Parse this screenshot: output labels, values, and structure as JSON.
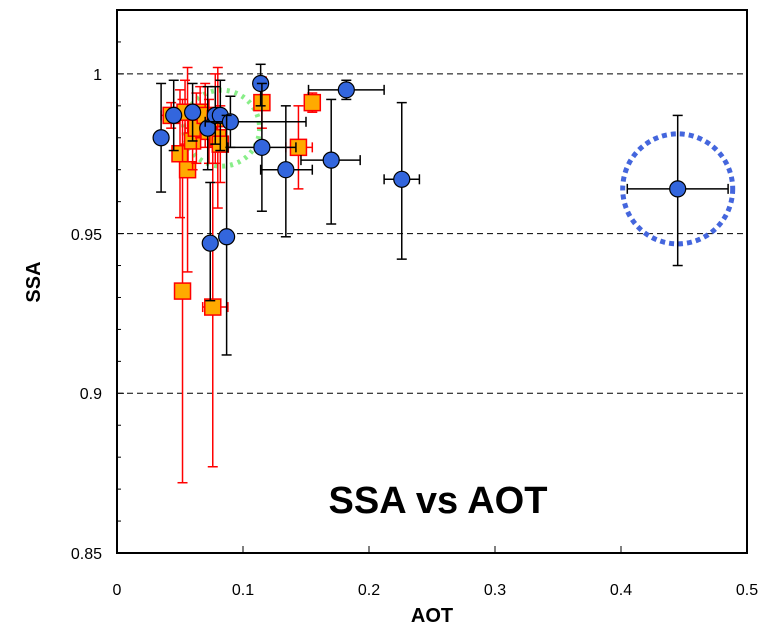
{
  "chart_data": {
    "type": "scatter",
    "title": "",
    "annotation": "SSA vs AOT",
    "xlabel": "AOT",
    "ylabel": "SSA",
    "xlim": [
      0,
      0.5
    ],
    "ylim": [
      0.85,
      1.02
    ],
    "xticks": [
      0,
      0.1,
      0.2,
      0.3,
      0.4,
      0.5
    ],
    "xtick_labels": [
      "0",
      "0.1",
      "0.2",
      "0.3",
      "0.4",
      "0.5"
    ],
    "yticks": [
      0.85,
      0.9,
      0.95,
      1
    ],
    "ytick_labels": [
      "0.85",
      "0.9",
      "0.95",
      "1"
    ],
    "dashed_gridlines_y": [
      0.9,
      0.95,
      1
    ],
    "legend": "none",
    "series": [
      {
        "marker": "circle",
        "color": "#3366dd",
        "error_color": "#000000",
        "points": [
          {
            "x": 0.035,
            "y": 0.98,
            "ylo": 0.963,
            "yhi": 0.997
          },
          {
            "x": 0.045,
            "y": 0.987,
            "ylo": 0.976,
            "yhi": 0.998
          },
          {
            "x": 0.06,
            "y": 0.988,
            "ylo": 0.979,
            "yhi": 0.997
          },
          {
            "x": 0.072,
            "y": 0.983,
            "ylo": 0.97,
            "yhi": 0.996
          },
          {
            "x": 0.078,
            "y": 0.987,
            "ylo": 0.978,
            "yhi": 0.996
          },
          {
            "x": 0.082,
            "y": 0.987,
            "ylo": 0.976,
            "yhi": 0.998
          },
          {
            "x": 0.09,
            "y": 0.985,
            "xlo": 0.07,
            "xhi": 0.15,
            "ylo": 0.977,
            "yhi": 0.993
          },
          {
            "x": 0.074,
            "y": 0.947,
            "ylo": 0.929,
            "yhi": 0.966
          },
          {
            "x": 0.087,
            "y": 0.949,
            "ylo": 0.912,
            "yhi": 0.987
          },
          {
            "x": 0.114,
            "y": 0.997,
            "ylo": 0.99,
            "yhi": 1.003
          },
          {
            "x": 0.115,
            "y": 0.977,
            "xlo": 0.088,
            "xhi": 0.142,
            "ylo": 0.957,
            "yhi": 0.997
          },
          {
            "x": 0.134,
            "y": 0.97,
            "xlo": 0.114,
            "xhi": 0.155,
            "ylo": 0.949,
            "yhi": 0.99
          },
          {
            "x": 0.17,
            "y": 0.973,
            "xlo": 0.146,
            "xhi": 0.193,
            "ylo": 0.953,
            "yhi": 0.992
          },
          {
            "x": 0.182,
            "y": 0.995,
            "xlo": 0.152,
            "xhi": 0.212,
            "ylo": 0.992,
            "yhi": 0.998
          },
          {
            "x": 0.226,
            "y": 0.967,
            "xlo": 0.212,
            "xhi": 0.24,
            "ylo": 0.942,
            "yhi": 0.991
          },
          {
            "x": 0.445,
            "y": 0.964,
            "xlo": 0.405,
            "xhi": 0.485,
            "ylo": 0.94,
            "yhi": 0.987
          }
        ]
      },
      {
        "marker": "square",
        "color": "#ffaa00",
        "edge_color": "#ff0000",
        "error_color": "#ff0000",
        "points": [
          {
            "x": 0.043,
            "y": 0.987,
            "xlo": 0.035,
            "xhi": 0.052,
            "ylo": 0.983,
            "yhi": 0.991
          },
          {
            "x": 0.05,
            "y": 0.975,
            "ylo": 0.955,
            "yhi": 0.995
          },
          {
            "x": 0.052,
            "y": 0.932,
            "ylo": 0.872,
            "yhi": 0.992
          },
          {
            "x": 0.054,
            "y": 0.988,
            "ylo": 0.978,
            "yhi": 0.998
          },
          {
            "x": 0.056,
            "y": 0.97,
            "ylo": 0.938,
            "yhi": 1.002
          },
          {
            "x": 0.06,
            "y": 0.979,
            "ylo": 0.97,
            "yhi": 0.988
          },
          {
            "x": 0.063,
            "y": 0.983,
            "xlo": 0.054,
            "xhi": 0.072,
            "ylo": 0.972,
            "yhi": 0.994
          },
          {
            "x": 0.066,
            "y": 0.988,
            "ylo": 0.98,
            "yhi": 0.996
          },
          {
            "x": 0.07,
            "y": 0.987,
            "ylo": 0.977,
            "yhi": 0.997
          },
          {
            "x": 0.073,
            "y": 0.982,
            "ylo": 0.972,
            "yhi": 0.992
          },
          {
            "x": 0.076,
            "y": 0.927,
            "xlo": 0.068,
            "xhi": 0.088,
            "ylo": 0.877,
            "yhi": 0.977
          },
          {
            "x": 0.078,
            "y": 0.986,
            "ylo": 0.972,
            "yhi": 1.0
          },
          {
            "x": 0.08,
            "y": 0.98,
            "ylo": 0.958,
            "yhi": 1.002
          },
          {
            "x": 0.082,
            "y": 0.978,
            "ylo": 0.966,
            "yhi": 0.99
          },
          {
            "x": 0.115,
            "y": 0.991,
            "ylo": 0.983,
            "yhi": 0.999
          },
          {
            "x": 0.144,
            "y": 0.977,
            "xlo": 0.134,
            "xhi": 0.155,
            "ylo": 0.964,
            "yhi": 0.99
          },
          {
            "x": 0.155,
            "y": 0.991,
            "ylo": 0.988,
            "yhi": 0.994
          }
        ]
      }
    ],
    "highlight_circles": [
      {
        "x": 0.083,
        "y": 0.983,
        "color": "#88ee88",
        "style": "dotted"
      },
      {
        "x": 0.445,
        "y": 0.964,
        "color": "#4466dd",
        "style": "dotted"
      }
    ]
  }
}
